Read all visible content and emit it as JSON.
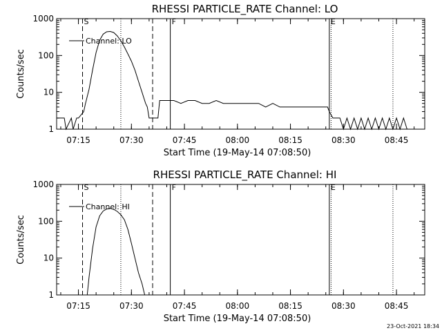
{
  "footer_date": "23-Oct-2021 18:34",
  "colors": {
    "background": "#ffffff",
    "foreground": "#000000"
  },
  "chart_data": [
    {
      "type": "line",
      "title": "RHESSI PARTICLE_RATE Channel: LO",
      "xlabel": "Start Time (19-May-14 07:08:50)",
      "ylabel": "Counts/sec",
      "yscale": "log",
      "ylim": [
        1,
        1000
      ],
      "xlim": [
        "07:08:50",
        "08:53:00"
      ],
      "x_ticks": [
        "07:15",
        "07:30",
        "07:45",
        "08:00",
        "08:15",
        "08:30",
        "08:45"
      ],
      "y_ticks": [
        "1",
        "10",
        "100",
        "1000"
      ],
      "legend": "top-left",
      "grid": false,
      "series": [
        {
          "name": "Channel: LO",
          "x": [
            "07:08:50",
            "07:11:00",
            "07:11:30",
            "07:13:00",
            "07:13:30",
            "07:14:30",
            "07:15:00",
            "07:16:30",
            "07:17:00",
            "07:18:00",
            "07:19:00",
            "07:20:00",
            "07:21:00",
            "07:22:00",
            "07:23:00",
            "07:24:00",
            "07:25:00",
            "07:26:00",
            "07:27:00",
            "07:28:00",
            "07:29:00",
            "07:30:00",
            "07:31:00",
            "07:32:00",
            "07:33:00",
            "07:34:00",
            "07:34:30",
            "07:35:00",
            "07:36:00",
            "07:37:00",
            "07:37:30",
            "07:38:00",
            "07:40:00",
            "07:42:00",
            "07:44:00",
            "07:46:00",
            "07:48:00",
            "07:50:00",
            "07:52:00",
            "07:54:00",
            "07:56:00",
            "07:58:00",
            "08:00:00",
            "08:02:00",
            "08:04:00",
            "08:06:00",
            "08:08:00",
            "08:10:00",
            "08:12:00",
            "08:14:00",
            "08:16:00",
            "08:18:00",
            "08:20:00",
            "08:22:00",
            "08:24:00",
            "08:25:30",
            "08:26:00",
            "08:27:00",
            "08:28:00",
            "08:29:00",
            "08:30:00",
            "08:31:00",
            "08:32:00",
            "08:33:00",
            "08:34:00",
            "08:35:00",
            "08:36:00",
            "08:37:00",
            "08:38:00",
            "08:39:00",
            "08:40:00",
            "08:41:00",
            "08:42:00",
            "08:43:00",
            "08:44:00",
            "08:45:00",
            "08:46:00",
            "08:47:00",
            "08:48:00"
          ],
          "values": [
            2,
            2,
            1,
            2,
            1,
            2,
            2,
            3,
            5,
            12,
            40,
            120,
            260,
            380,
            440,
            450,
            420,
            340,
            250,
            170,
            110,
            70,
            40,
            20,
            10,
            5,
            4,
            2,
            2,
            2,
            2,
            6,
            6,
            6,
            5,
            6,
            6,
            5,
            5,
            6,
            5,
            5,
            5,
            5,
            5,
            5,
            4,
            5,
            4,
            4,
            4,
            4,
            4,
            4,
            4,
            4,
            3,
            2,
            2,
            2,
            1,
            2,
            1,
            2,
            1,
            2,
            1,
            2,
            1,
            2,
            1,
            2,
            1,
            2,
            1,
            2,
            1,
            2,
            1
          ]
        }
      ],
      "markers": [
        {
          "label": "S",
          "time": "07:16:10",
          "style": "dashed"
        },
        {
          "label": "",
          "time": "07:27:00",
          "style": "dotted"
        },
        {
          "label": "",
          "time": "07:36:00",
          "style": "dashed"
        },
        {
          "label": "F",
          "time": "07:41:00",
          "style": "solid"
        },
        {
          "label": "E",
          "time": "08:26:00",
          "style": "solid"
        },
        {
          "label": "",
          "time": "08:26:30",
          "style": "dotted"
        },
        {
          "label": "",
          "time": "08:44:00",
          "style": "dotted"
        }
      ]
    },
    {
      "type": "line",
      "title": "RHESSI PARTICLE_RATE Channel: HI",
      "xlabel": "Start Time (19-May-14 07:08:50)",
      "ylabel": "Counts/sec",
      "yscale": "log",
      "ylim": [
        1,
        1000
      ],
      "xlim": [
        "07:08:50",
        "08:53:00"
      ],
      "x_ticks": [
        "07:15",
        "07:30",
        "07:45",
        "08:00",
        "08:15",
        "08:30",
        "08:45"
      ],
      "y_ticks": [
        "1",
        "10",
        "100",
        "1000"
      ],
      "legend": "top-left",
      "grid": false,
      "series": [
        {
          "name": "Channel: HI",
          "x": [
            "07:17:30",
            "07:18:00",
            "07:19:00",
            "07:20:00",
            "07:21:00",
            "07:22:00",
            "07:23:00",
            "07:24:00",
            "07:25:00",
            "07:26:00",
            "07:27:00",
            "07:28:00",
            "07:29:00",
            "07:30:00",
            "07:31:00",
            "07:32:00",
            "07:33:00",
            "07:33:45"
          ],
          "values": [
            1,
            3,
            18,
            70,
            140,
            190,
            215,
            225,
            210,
            185,
            150,
            110,
            60,
            25,
            10,
            4,
            2,
            1
          ]
        }
      ],
      "markers": [
        {
          "label": "S",
          "time": "07:16:10",
          "style": "dashed"
        },
        {
          "label": "",
          "time": "07:27:00",
          "style": "dotted"
        },
        {
          "label": "",
          "time": "07:36:00",
          "style": "dashed"
        },
        {
          "label": "F",
          "time": "07:41:00",
          "style": "solid"
        },
        {
          "label": "E",
          "time": "08:26:00",
          "style": "solid"
        },
        {
          "label": "",
          "time": "08:26:30",
          "style": "dotted"
        },
        {
          "label": "",
          "time": "08:44:00",
          "style": "dotted"
        }
      ]
    }
  ]
}
